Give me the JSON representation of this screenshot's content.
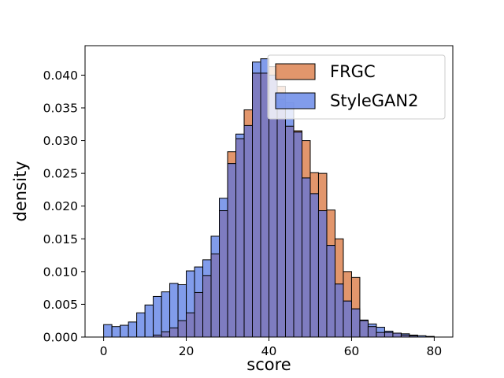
{
  "chart_data": {
    "type": "histogram",
    "xlabel": "score",
    "ylabel": "density",
    "xlim": [
      -4.5,
      84.5
    ],
    "ylim": [
      0,
      0.0445
    ],
    "bin_width": 2.0,
    "xticks": [
      0,
      20,
      40,
      60,
      80
    ],
    "yticks": [
      0.0,
      0.005,
      0.01,
      0.015,
      0.02,
      0.025,
      0.03,
      0.035,
      0.04
    ],
    "ytick_labels": [
      "0.000",
      "0.005",
      "0.010",
      "0.015",
      "0.020",
      "0.025",
      "0.030",
      "0.035",
      "0.040"
    ],
    "legend_position": "top-right",
    "series": [
      {
        "name": "FRGC",
        "color": "#dd8452",
        "bin_starts": [
          12,
          14,
          16,
          18,
          20,
          22,
          24,
          26,
          28,
          30,
          32,
          34,
          36,
          38,
          40,
          42,
          44,
          46,
          48,
          50,
          52,
          54,
          56,
          58,
          60,
          62,
          64,
          66,
          68,
          70,
          72,
          74
        ],
        "values": [
          0.0003,
          0.0008,
          0.0014,
          0.0025,
          0.0037,
          0.0068,
          0.0094,
          0.0127,
          0.0193,
          0.0283,
          0.0303,
          0.0347,
          0.0403,
          0.0403,
          0.0413,
          0.0383,
          0.0322,
          0.0315,
          0.03,
          0.0251,
          0.025,
          0.0194,
          0.015,
          0.01,
          0.0091,
          0.0025,
          0.0016,
          0.0007,
          0.0007,
          0.0006,
          0.0003,
          0.0002
        ]
      },
      {
        "name": "StyleGAN2",
        "color": "#6b8be8",
        "bin_starts": [
          0,
          2,
          4,
          6,
          8,
          10,
          12,
          14,
          16,
          18,
          20,
          22,
          24,
          26,
          28,
          30,
          32,
          34,
          36,
          38,
          40,
          42,
          44,
          46,
          48,
          50,
          52,
          54,
          56,
          58,
          60,
          62,
          64,
          66,
          68,
          70,
          72,
          74,
          76,
          78
        ],
        "values": [
          0.0019,
          0.0016,
          0.0018,
          0.0023,
          0.0037,
          0.0049,
          0.0062,
          0.0069,
          0.0082,
          0.008,
          0.0101,
          0.0107,
          0.0118,
          0.0154,
          0.0212,
          0.0265,
          0.031,
          0.0323,
          0.042,
          0.0425,
          0.04,
          0.0363,
          0.0358,
          0.0313,
          0.0243,
          0.0219,
          0.0193,
          0.014,
          0.0081,
          0.0055,
          0.0043,
          0.0026,
          0.002,
          0.0015,
          0.0009,
          0.0006,
          0.0005,
          0.0003,
          0.0002,
          0.0001
        ]
      }
    ],
    "overlap_color": "#7e7cc0"
  }
}
